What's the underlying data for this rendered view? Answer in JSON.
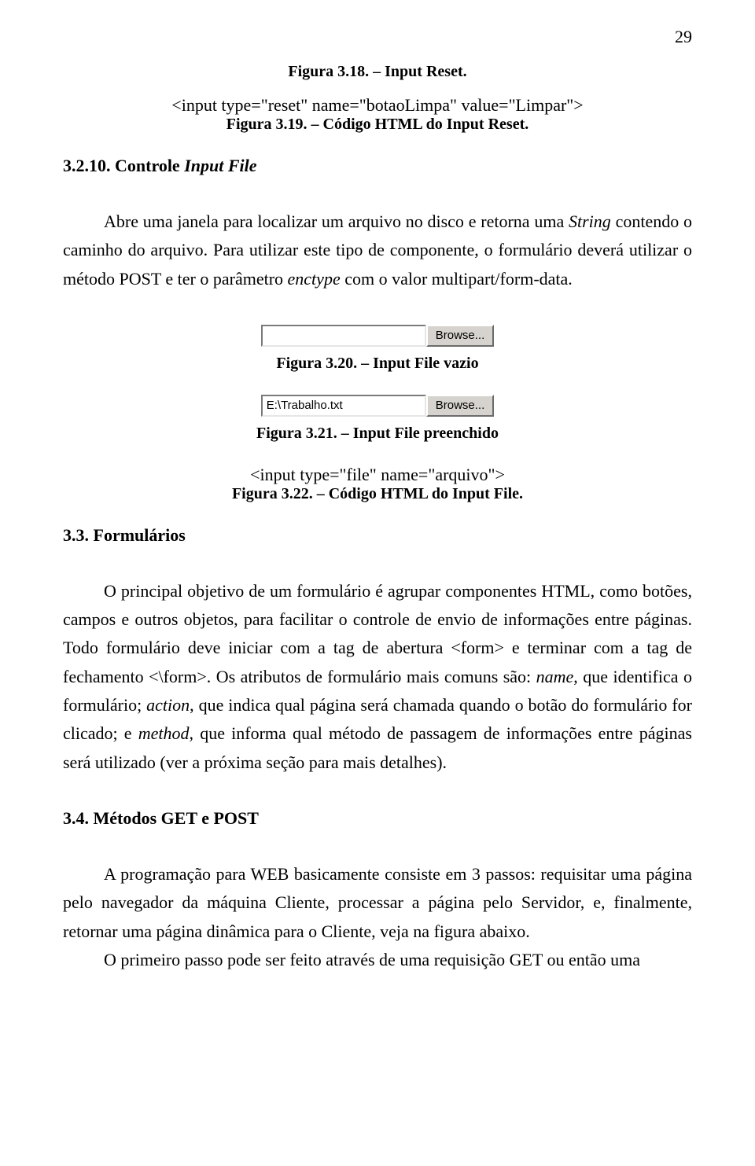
{
  "page_number": "29",
  "figure_318_caption": "Figura 3.18. – Input Reset.",
  "code_reset": "<input type=\"reset\" name=\"botaoLimpa\" value=\"Limpar\">",
  "figure_319_caption": "Figura 3.19. – Código HTML do Input Reset.",
  "section_3210_number": "3.2.10. Controle ",
  "section_3210_italic": "Input File",
  "para_3210_a": "Abre uma janela para localizar um arquivo no disco e retorna uma ",
  "para_3210_string": "String",
  "para_3210_b": " contendo o caminho do arquivo. Para utilizar este tipo de componente, o formulário deverá utilizar o método POST e ter o parâmetro ",
  "para_3210_enctype": "enctype",
  "para_3210_c": " com o valor multipart/form-data.",
  "file_empty_value": "",
  "file_filled_value": "E:\\Trabalho.txt",
  "browse_label": "Browse...",
  "figure_320_caption": "Figura 3.20. – Input File vazio",
  "figure_321_caption": "Figura 3.21. – Input File preenchido",
  "code_file": "<input type=\"file\" name=\"arquivo\">",
  "figure_322_caption": "Figura 3.22. – Código HTML do Input File.",
  "section_33": "3.3. Formulários",
  "para_33_a": "O principal objetivo de um formulário é agrupar componentes HTML, como botões, campos e outros objetos, para facilitar o controle de envio de informações entre páginas. Todo formulário deve iniciar com a tag de abertura <form> e terminar com a tag de fechamento <\\form>. Os atributos de formulário mais comuns são: ",
  "para_33_name": "name",
  "para_33_b": ", que identifica o formulário; ",
  "para_33_action": "action",
  "para_33_c": ", que indica qual página será chamada quando o botão do formulário for clicado; e ",
  "para_33_method": "method",
  "para_33_d": ", que informa qual método de passagem de informações entre páginas será utilizado (ver a próxima seção para mais detalhes).",
  "section_34": "3.4. Métodos GET e POST",
  "para_34": "A programação para WEB basicamente consiste em 3 passos: requisitar uma página pelo navegador da máquina Cliente, processar a página pelo Servidor, e, finalmente, retornar uma página dinâmica para o Cliente, veja na figura abaixo.",
  "para_34b": "O primeiro passo pode ser feito através de uma requisição GET ou então uma"
}
